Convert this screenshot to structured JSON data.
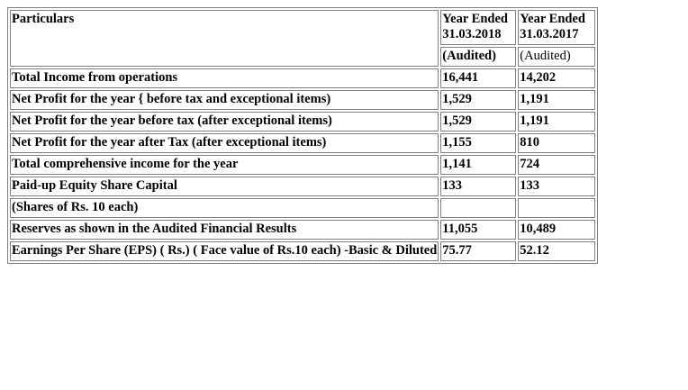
{
  "table": {
    "header": {
      "particulars": "Particulars",
      "col1_line1": "Year Ended",
      "col1_line2": "31.03.2018",
      "col2_line1": "Year Ended",
      "col2_line2": "31.03.2017",
      "col1_status": "(Audited)",
      "col2_status": "(Audited)"
    },
    "rows": [
      {
        "label": "Total Income from operations",
        "v2018": "16,441",
        "v2017": "14,202"
      },
      {
        "label": "Net Profit for the year { before tax and exceptional items)",
        "v2018": "1,529",
        "v2017": "1,191"
      },
      {
        "label": "Net Profit for the year before tax (after exceptional items)",
        "v2018": "1,529",
        "v2017": "1,191"
      },
      {
        "label": "Net Profit for the year after Tax (after exceptional items)",
        "v2018": "1,155",
        "v2017": "810"
      },
      {
        "label": "Total comprehensive income for the year",
        "v2018": "1,141",
        "v2017": "724"
      },
      {
        "label": "Paid-up Equity Share Capital",
        "v2018": "133",
        "v2017": "133"
      },
      {
        "label": "(Shares of Rs. 10 each)",
        "v2018": "",
        "v2017": ""
      },
      {
        "label": "Reserves as shown in the Audited Financial Results",
        "v2018": "11,055",
        "v2017": "10,489"
      },
      {
        "label": "Earnings Per Share (EPS) ( Rs.) ( Face value of Rs.10 each) -Basic & Diluted",
        "v2018": "75.77",
        "v2017": "52.12"
      }
    ]
  }
}
